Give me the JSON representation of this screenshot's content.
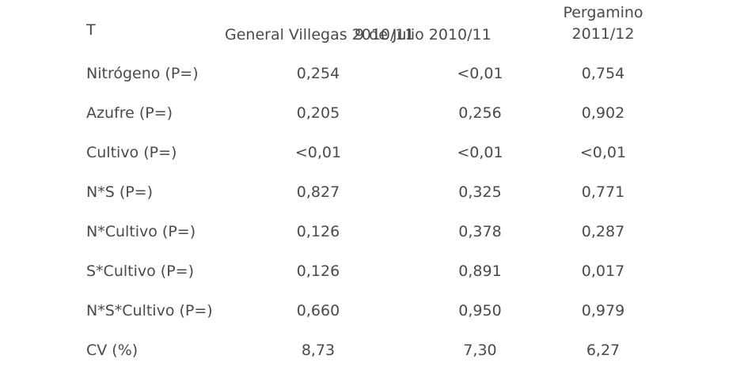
{
  "table": {
    "headers": {
      "label": "T",
      "col_a": "General Villegas 2010/11",
      "col_b": "9 de Julio 2010/11",
      "col_c_line1": "Pergamino",
      "col_c_line2": "2011/12"
    },
    "rows": [
      {
        "label": "Nitrógeno (P=)",
        "a": "0,254",
        "b": "<0,01",
        "c": "0,754"
      },
      {
        "label": "Azufre (P=)",
        "a": "0,205",
        "b": "0,256",
        "c": "0,902"
      },
      {
        "label": "Cultivo (P=)",
        "a": "<0,01",
        "b": "<0,01",
        "c": "<0,01"
      },
      {
        "label": "N*S (P=)",
        "a": "0,827",
        "b": "0,325",
        "c": "0,771"
      },
      {
        "label": "N*Cultivo (P=)",
        "a": "0,126",
        "b": "0,378",
        "c": "0,287"
      },
      {
        "label": "S*Cultivo (P=)",
        "a": "0,126",
        "b": "0,891",
        "c": "0,017"
      },
      {
        "label": "N*S*Cultivo (P=)",
        "a": "0,660",
        "b": "0,950",
        "c": "0,979"
      },
      {
        "label": "CV (%)",
        "a": "8,73",
        "b": "7,30",
        "c": "6,27"
      }
    ]
  }
}
